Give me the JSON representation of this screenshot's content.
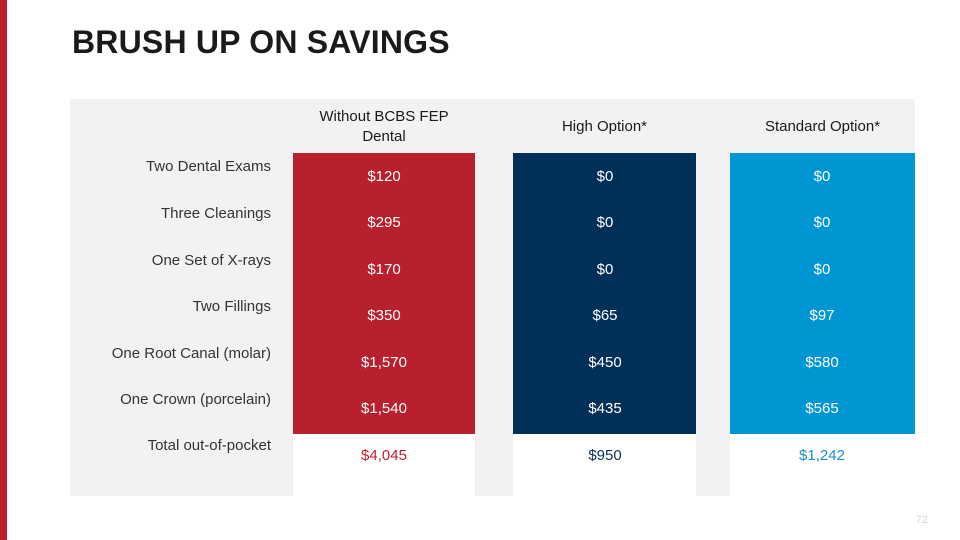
{
  "title": "BRUSH UP ON SAVINGS",
  "colors": {
    "accent": "#c0202e",
    "navy": "#003057",
    "blue": "#0095d3",
    "panel": "#f2f2f4"
  },
  "columns": [
    {
      "header": "Without BCBS FEP Dental"
    },
    {
      "header": "High Option*"
    },
    {
      "header": "Standard Option*"
    }
  ],
  "rows": [
    {
      "label": "Two Dental Exams",
      "values": [
        "$120",
        "$0",
        "$0"
      ]
    },
    {
      "label": "Three Cleanings",
      "values": [
        "$295",
        "$0",
        "$0"
      ]
    },
    {
      "label": "One Set of X-rays",
      "values": [
        "$170",
        "$0",
        "$0"
      ]
    },
    {
      "label": "Two Fillings",
      "values": [
        "$350",
        "$65",
        "$97"
      ]
    },
    {
      "label": "One Root Canal (molar)",
      "values": [
        "$1,570",
        "$450",
        "$580"
      ]
    },
    {
      "label": "One Crown (porcelain)",
      "values": [
        "$1,540",
        "$435",
        "$565"
      ]
    }
  ],
  "total": {
    "label": "Total out-of-pocket",
    "values": [
      "$4,045",
      "$950",
      "$1,242"
    ]
  },
  "page_number": "72"
}
